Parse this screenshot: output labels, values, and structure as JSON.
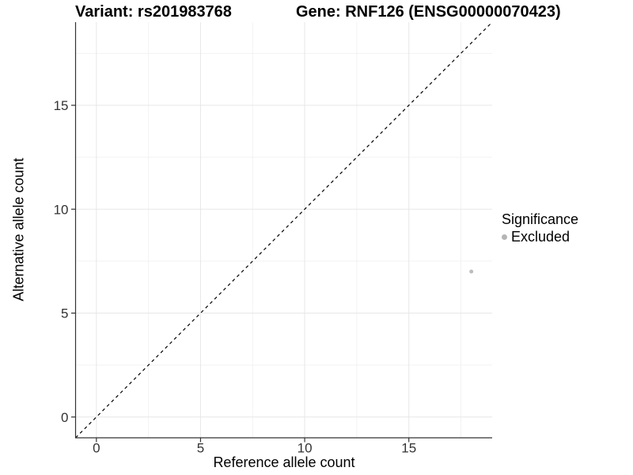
{
  "titles": {
    "left": "Variant: rs201983768",
    "right": "Gene: RNF126 (ENSG00000070423)"
  },
  "chart_data": {
    "type": "scatter",
    "xlabel": "Reference allele count",
    "ylabel": "Alternative allele count",
    "x_range": [
      -1,
      19
    ],
    "y_range": [
      -1,
      19
    ],
    "x_ticks": [
      0,
      5,
      10,
      15
    ],
    "y_ticks": [
      0,
      5,
      10,
      15
    ],
    "x_minor_ticks": [
      2.5,
      7.5,
      12.5,
      17.5
    ],
    "y_minor_ticks": [
      2.5,
      7.5,
      12.5,
      17.5
    ],
    "grid": true,
    "reference_line": {
      "type": "identity",
      "from": [
        -1,
        -1
      ],
      "to": [
        19,
        19
      ],
      "style": "dashed",
      "color": "#000000"
    },
    "series": [
      {
        "name": "Excluded",
        "color": "#bdbdbd",
        "points": [
          {
            "x": 18,
            "y": 7
          }
        ]
      }
    ],
    "legend": {
      "title": "Significance",
      "position": "right",
      "items": [
        {
          "label": "Excluded",
          "color": "#b5b5b5"
        }
      ]
    }
  },
  "colors": {
    "panel_background": "#ffffff",
    "grid_major": "#e7e7e7",
    "grid_minor": "#f2f2f2",
    "axis_line": "#333333",
    "tick_label": "#333333",
    "point": "#bdbdbd"
  }
}
